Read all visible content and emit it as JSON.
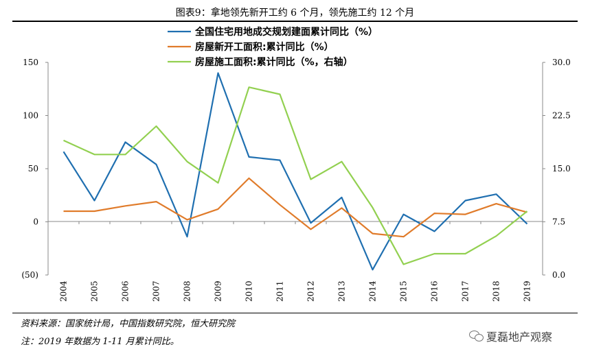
{
  "title": "图表9：拿地领先新开工约 6 个月，领先施工约 12 个月",
  "source": "资料来源：国家统计局，中国指数研究院，恒大研究院",
  "footnote": "注：2019 年数据为 1-11 月累计同比。",
  "watermark": "夏磊地产观察",
  "watermark_icon": "wechat-icon",
  "chart_data": {
    "type": "line",
    "x": [
      "2004",
      "2005",
      "2006",
      "2007",
      "2008",
      "2009",
      "2010",
      "2011",
      "2012",
      "2013",
      "2014",
      "2015",
      "2016",
      "2017",
      "2018",
      "2019"
    ],
    "y_left": {
      "range": [
        -50,
        150
      ],
      "ticks": [
        -50,
        0,
        50,
        100,
        150
      ],
      "tick_labels": [
        "(50)",
        "0",
        "50",
        "100",
        "150"
      ]
    },
    "y_right": {
      "range": [
        0,
        30
      ],
      "ticks": [
        0,
        7.5,
        15,
        22.5,
        30
      ],
      "tick_labels": [
        "0.0",
        "7.5",
        "15.0",
        "22.5",
        "30.0"
      ]
    },
    "grid": false,
    "legend_position": "top-center",
    "series": [
      {
        "name": "全国住宅用地成交规划建面累计同比（%）",
        "axis": "left",
        "color": "#1f6fb0",
        "values": [
          66,
          20,
          75,
          54,
          -14,
          140,
          61,
          58,
          -1,
          23,
          -45,
          7,
          -9,
          20,
          26,
          -2
        ]
      },
      {
        "name": "房屋新开工面积:累计同比（%）",
        "axis": "left",
        "color": "#e07b2a",
        "values": [
          10,
          10,
          15,
          19,
          2,
          12,
          41,
          16,
          -7,
          13,
          -11,
          -14,
          8,
          7,
          17,
          9
        ]
      },
      {
        "name": "房屋施工面积:累计同比（%，右轴）",
        "axis": "right",
        "color": "#92d050",
        "values": [
          19,
          17,
          17,
          21,
          16,
          13,
          26.5,
          25.5,
          13.5,
          16,
          9.5,
          1.5,
          3,
          3,
          5.5,
          9
        ]
      }
    ]
  }
}
